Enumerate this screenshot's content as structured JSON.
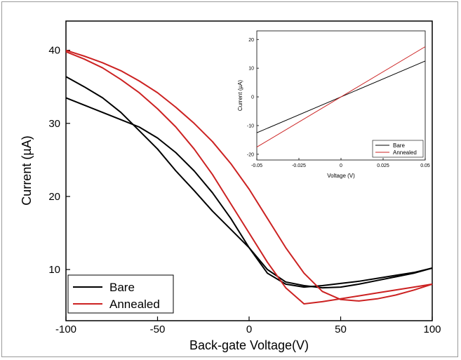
{
  "chart_data": [
    {
      "type": "line",
      "title": "",
      "xlabel": "Back-gate Voltage(V)",
      "ylabel": "Current (µA)",
      "xlim": [
        -100,
        100
      ],
      "ylim": [
        3,
        44
      ],
      "xticks": [
        -100,
        -50,
        0,
        50,
        100
      ],
      "yticks": [
        10,
        20,
        30,
        40
      ],
      "legend_position": "bottom-left",
      "grid": false,
      "series": [
        {
          "name": "Bare",
          "color": "#000000",
          "sweeps": [
            {
              "x": [
                -100,
                -90,
                -80,
                -70,
                -60,
                -50,
                -40,
                -30,
                -20,
                -10,
                0,
                10,
                20,
                30,
                40,
                50,
                60,
                70,
                80,
                90,
                100
              ],
              "y": [
                33.5,
                32.5,
                31.5,
                30.5,
                29.5,
                28,
                26,
                23.5,
                20.5,
                17,
                13,
                9.5,
                8,
                7.6,
                7.8,
                8.1,
                8.4,
                8.8,
                9.2,
                9.6,
                10.2
              ]
            },
            {
              "x": [
                100,
                90,
                80,
                70,
                60,
                50,
                40,
                30,
                20,
                10,
                0,
                -10,
                -20,
                -30,
                -40,
                -50,
                -60,
                -70,
                -80,
                -90,
                -100
              ],
              "y": [
                10.2,
                9.5,
                9.0,
                8.5,
                8.0,
                7.6,
                7.5,
                7.8,
                8.3,
                10,
                13,
                15.5,
                18,
                20.8,
                23.5,
                26.5,
                29,
                31.5,
                33.5,
                35,
                36.4
              ]
            }
          ]
        },
        {
          "name": "Annealed",
          "color": "#cc2222",
          "sweeps": [
            {
              "x": [
                -100,
                -90,
                -80,
                -70,
                -60,
                -50,
                -40,
                -30,
                -20,
                -10,
                0,
                10,
                20,
                30,
                40,
                50,
                60,
                70,
                80,
                90,
                100
              ],
              "y": [
                39.8,
                38.8,
                37.6,
                36,
                34.2,
                32,
                29.5,
                26.5,
                23,
                19,
                15,
                11,
                7.5,
                5.3,
                5.6,
                6.0,
                6.4,
                6.8,
                7.2,
                7.6,
                8.0
              ]
            },
            {
              "x": [
                100,
                90,
                80,
                70,
                60,
                50,
                40,
                30,
                20,
                10,
                0,
                -10,
                -20,
                -30,
                -40,
                -50,
                -60,
                -70,
                -80,
                -90,
                -100
              ],
              "y": [
                8.0,
                7.2,
                6.5,
                6.0,
                5.7,
                5.9,
                7.0,
                9.5,
                13,
                17,
                21,
                24.5,
                27.5,
                30,
                32.2,
                34.2,
                35.8,
                37.2,
                38.3,
                39.2,
                40.0
              ]
            }
          ]
        }
      ]
    },
    {
      "type": "line",
      "title": "",
      "xlabel": "Voltage (V)",
      "ylabel": "Current (µA)",
      "xlim": [
        -0.05,
        0.05
      ],
      "ylim": [
        -22,
        23
      ],
      "xticks": [
        -0.05,
        -0.025,
        0,
        0.025,
        0.05
      ],
      "xtick_labels": [
        "-0.05",
        "-0.025",
        "0",
        "0.025",
        "0.05"
      ],
      "yticks": [
        -20,
        -10,
        0,
        10,
        20
      ],
      "legend_position": "bottom-right",
      "grid": false,
      "series": [
        {
          "name": "Bare",
          "color": "#000000",
          "x": [
            -0.05,
            0.05
          ],
          "y": [
            -12.5,
            12.5
          ]
        },
        {
          "name": "Annealed",
          "color": "#cc2222",
          "x": [
            -0.05,
            0.05
          ],
          "y": [
            -17.5,
            17.5
          ]
        }
      ]
    }
  ]
}
